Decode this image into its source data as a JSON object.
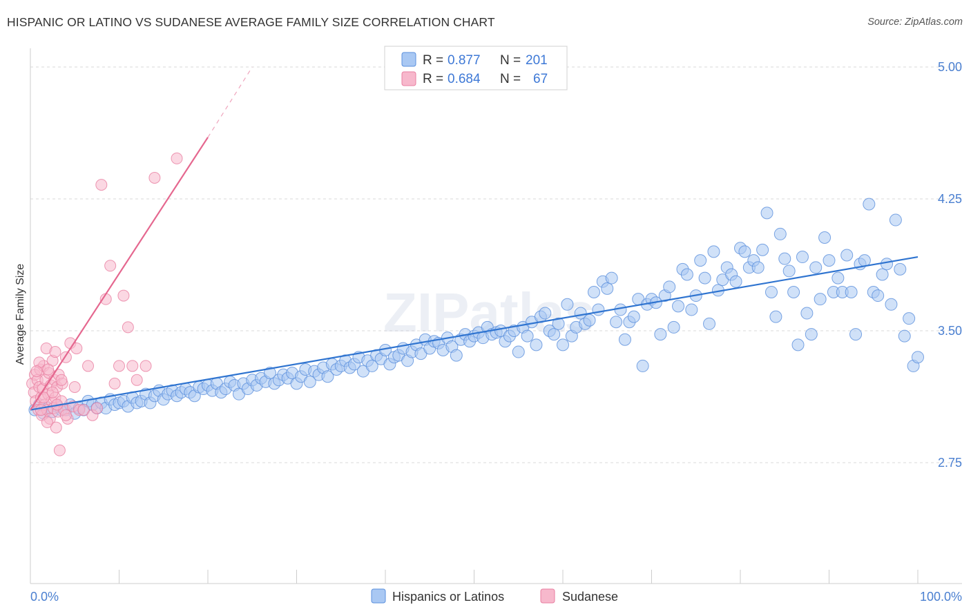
{
  "title": "HISPANIC OR LATINO VS SUDANESE AVERAGE FAMILY SIZE CORRELATION CHART",
  "source": "Source: ZipAtlas.com",
  "watermark": "ZIPatlas",
  "colors": {
    "blue_fill": "#a9c8f3",
    "blue_stroke": "#5a8fdc",
    "blue_line": "#2f74d0",
    "pink_fill": "#f7b8cc",
    "pink_stroke": "#e87ea0",
    "pink_line": "#e5678f",
    "grid": "#d9d9d9",
    "tick_label": "#4a7fd0"
  },
  "legend": {
    "rows": [
      {
        "r_label": "R =",
        "r_value": "0.877",
        "n_label": "N =",
        "n_value": "201"
      },
      {
        "r_label": "R =",
        "r_value": "0.684",
        "n_label": "N =",
        "n_value": "67"
      }
    ]
  },
  "chart_data": {
    "type": "scatter",
    "title": "HISPANIC OR LATINO VS SUDANESE AVERAGE FAMILY SIZE CORRELATION CHART",
    "xlabel": "",
    "ylabel": "Average Family Size",
    "x_tick_labels": [
      "0.0%",
      "100.0%"
    ],
    "y_tick_labels": [
      "5.00",
      "4.25",
      "3.50",
      "2.75"
    ],
    "y_ticks": [
      5.0,
      4.25,
      3.5,
      2.75
    ],
    "xlim": [
      0,
      100
    ],
    "ylim": [
      2.0,
      5.2
    ],
    "grid": "horizontal dashed",
    "legend_position": "bottom",
    "series": [
      {
        "name": "Hispanics or Latinos",
        "r": 0.877,
        "n": 201,
        "trend": {
          "x": [
            0,
            100
          ],
          "y": [
            3.05,
            3.92
          ]
        },
        "points": [
          [
            0.5,
            3.05
          ],
          [
            1,
            3.08
          ],
          [
            1.5,
            3.03
          ],
          [
            2,
            3.06
          ],
          [
            2.5,
            3.04
          ],
          [
            3,
            3.07
          ],
          [
            3.5,
            3.05
          ],
          [
            4,
            3.05
          ],
          [
            4.5,
            3.08
          ],
          [
            5,
            3.03
          ],
          [
            5.5,
            3.06
          ],
          [
            6,
            3.05
          ],
          [
            6.5,
            3.1
          ],
          [
            7,
            3.08
          ],
          [
            7.5,
            3.06
          ],
          [
            8,
            3.09
          ],
          [
            8.5,
            3.06
          ],
          [
            9,
            3.11
          ],
          [
            9.5,
            3.08
          ],
          [
            10,
            3.09
          ],
          [
            10.5,
            3.1
          ],
          [
            11,
            3.07
          ],
          [
            11.5,
            3.12
          ],
          [
            12,
            3.09
          ],
          [
            12.5,
            3.1
          ],
          [
            13,
            3.14
          ],
          [
            13.5,
            3.09
          ],
          [
            14,
            3.13
          ],
          [
            14.5,
            3.16
          ],
          [
            15,
            3.11
          ],
          [
            15.5,
            3.14
          ],
          [
            16,
            3.16
          ],
          [
            16.5,
            3.13
          ],
          [
            17,
            3.15
          ],
          [
            17.5,
            3.17
          ],
          [
            18,
            3.15
          ],
          [
            18.5,
            3.13
          ],
          [
            19,
            3.18
          ],
          [
            19.5,
            3.17
          ],
          [
            20,
            3.19
          ],
          [
            20.5,
            3.16
          ],
          [
            21,
            3.2
          ],
          [
            21.5,
            3.15
          ],
          [
            22,
            3.17
          ],
          [
            22.5,
            3.21
          ],
          [
            23,
            3.19
          ],
          [
            23.5,
            3.14
          ],
          [
            24,
            3.2
          ],
          [
            24.5,
            3.17
          ],
          [
            25,
            3.22
          ],
          [
            25.5,
            3.19
          ],
          [
            26,
            3.23
          ],
          [
            26.5,
            3.21
          ],
          [
            27,
            3.26
          ],
          [
            27.5,
            3.2
          ],
          [
            28,
            3.22
          ],
          [
            28.5,
            3.25
          ],
          [
            29,
            3.23
          ],
          [
            29.5,
            3.26
          ],
          [
            30,
            3.2
          ],
          [
            30.5,
            3.24
          ],
          [
            31,
            3.28
          ],
          [
            31.5,
            3.21
          ],
          [
            32,
            3.27
          ],
          [
            32.5,
            3.25
          ],
          [
            33,
            3.29
          ],
          [
            33.5,
            3.24
          ],
          [
            34,
            3.31
          ],
          [
            34.5,
            3.28
          ],
          [
            35,
            3.3
          ],
          [
            35.5,
            3.33
          ],
          [
            36,
            3.29
          ],
          [
            36.5,
            3.31
          ],
          [
            37,
            3.35
          ],
          [
            37.5,
            3.27
          ],
          [
            38,
            3.33
          ],
          [
            38.5,
            3.3
          ],
          [
            39,
            3.36
          ],
          [
            39.5,
            3.34
          ],
          [
            40,
            3.39
          ],
          [
            40.5,
            3.31
          ],
          [
            41,
            3.35
          ],
          [
            41.5,
            3.36
          ],
          [
            42,
            3.4
          ],
          [
            42.5,
            3.33
          ],
          [
            43,
            3.38
          ],
          [
            43.5,
            3.42
          ],
          [
            44,
            3.37
          ],
          [
            44.5,
            3.45
          ],
          [
            45,
            3.4
          ],
          [
            45.5,
            3.44
          ],
          [
            46,
            3.43
          ],
          [
            46.5,
            3.39
          ],
          [
            47,
            3.46
          ],
          [
            47.5,
            3.41
          ],
          [
            48,
            3.36
          ],
          [
            48.5,
            3.45
          ],
          [
            49,
            3.48
          ],
          [
            49.5,
            3.44
          ],
          [
            50,
            3.47
          ],
          [
            50.5,
            3.49
          ],
          [
            51,
            3.46
          ],
          [
            51.5,
            3.52
          ],
          [
            52,
            3.48
          ],
          [
            52.5,
            3.49
          ],
          [
            53,
            3.5
          ],
          [
            53.5,
            3.44
          ],
          [
            54,
            3.47
          ],
          [
            54.5,
            3.5
          ],
          [
            55,
            3.38
          ],
          [
            55.5,
            3.52
          ],
          [
            56,
            3.47
          ],
          [
            56.5,
            3.55
          ],
          [
            57,
            3.42
          ],
          [
            57.5,
            3.58
          ],
          [
            58,
            3.6
          ],
          [
            58.5,
            3.5
          ],
          [
            59,
            3.48
          ],
          [
            59.5,
            3.54
          ],
          [
            60,
            3.42
          ],
          [
            60.5,
            3.65
          ],
          [
            61,
            3.47
          ],
          [
            61.5,
            3.52
          ],
          [
            62,
            3.6
          ],
          [
            62.5,
            3.54
          ],
          [
            63,
            3.56
          ],
          [
            63.5,
            3.72
          ],
          [
            64,
            3.62
          ],
          [
            64.5,
            3.78
          ],
          [
            65,
            3.74
          ],
          [
            65.5,
            3.8
          ],
          [
            66,
            3.55
          ],
          [
            66.5,
            3.62
          ],
          [
            67,
            3.45
          ],
          [
            67.5,
            3.55
          ],
          [
            68,
            3.58
          ],
          [
            68.5,
            3.68
          ],
          [
            69,
            3.3
          ],
          [
            69.5,
            3.65
          ],
          [
            70,
            3.68
          ],
          [
            70.5,
            3.66
          ],
          [
            71,
            3.48
          ],
          [
            71.5,
            3.7
          ],
          [
            72,
            3.75
          ],
          [
            72.5,
            3.52
          ],
          [
            73,
            3.64
          ],
          [
            73.5,
            3.85
          ],
          [
            74,
            3.82
          ],
          [
            74.5,
            3.62
          ],
          [
            75,
            3.7
          ],
          [
            75.5,
            3.9
          ],
          [
            76,
            3.8
          ],
          [
            76.5,
            3.54
          ],
          [
            77,
            3.95
          ],
          [
            77.5,
            3.73
          ],
          [
            78,
            3.79
          ],
          [
            78.5,
            3.86
          ],
          [
            79,
            3.82
          ],
          [
            79.5,
            3.78
          ],
          [
            80,
            3.97
          ],
          [
            80.5,
            3.95
          ],
          [
            81,
            3.86
          ],
          [
            81.5,
            3.9
          ],
          [
            82,
            3.86
          ],
          [
            82.5,
            3.96
          ],
          [
            83,
            4.17
          ],
          [
            83.5,
            3.72
          ],
          [
            84,
            3.58
          ],
          [
            84.5,
            4.05
          ],
          [
            85,
            3.91
          ],
          [
            85.5,
            3.84
          ],
          [
            86,
            3.72
          ],
          [
            86.5,
            3.42
          ],
          [
            87,
            3.92
          ],
          [
            87.5,
            3.6
          ],
          [
            88,
            3.48
          ],
          [
            88.5,
            3.86
          ],
          [
            89,
            3.68
          ],
          [
            89.5,
            4.03
          ],
          [
            90,
            3.9
          ],
          [
            90.5,
            3.72
          ],
          [
            91,
            3.8
          ],
          [
            91.5,
            3.72
          ],
          [
            92,
            3.93
          ],
          [
            92.5,
            3.72
          ],
          [
            93,
            3.48
          ],
          [
            93.5,
            3.88
          ],
          [
            94,
            3.9
          ],
          [
            94.5,
            4.22
          ],
          [
            95,
            3.72
          ],
          [
            95.5,
            3.7
          ],
          [
            96,
            3.82
          ],
          [
            96.5,
            3.88
          ],
          [
            97,
            3.65
          ],
          [
            97.5,
            4.13
          ],
          [
            98,
            3.85
          ],
          [
            98.5,
            3.47
          ],
          [
            99,
            3.57
          ],
          [
            99.5,
            3.3
          ],
          [
            100,
            3.35
          ]
        ]
      },
      {
        "name": "Sudanese",
        "r": 0.684,
        "n": 67,
        "trend": {
          "x": [
            0,
            20
          ],
          "y": [
            3.05,
            4.6
          ],
          "dashed_to": {
            "x": 25,
            "y": 5.0
          }
        },
        "points": [
          [
            0.2,
            3.2
          ],
          [
            0.4,
            3.15
          ],
          [
            0.5,
            3.25
          ],
          [
            0.6,
            3.1
          ],
          [
            0.8,
            3.22
          ],
          [
            0.9,
            3.05
          ],
          [
            1,
            3.18
          ],
          [
            1.1,
            3.28
          ],
          [
            1.2,
            3.12
          ],
          [
            1.3,
            3.02
          ],
          [
            1.4,
            3.17
          ],
          [
            1.5,
            3.3
          ],
          [
            1.6,
            3.08
          ],
          [
            1.7,
            3.22
          ],
          [
            1.8,
            3.4
          ],
          [
            1.9,
            3.05
          ],
          [
            2,
            3.14
          ],
          [
            2.1,
            3.26
          ],
          [
            2.2,
            3.0
          ],
          [
            2.3,
            3.19
          ],
          [
            2.4,
            3.1
          ],
          [
            2.5,
            3.33
          ],
          [
            2.6,
            3.06
          ],
          [
            2.7,
            3.22
          ],
          [
            2.8,
            3.12
          ],
          [
            2.9,
            2.95
          ],
          [
            3,
            3.18
          ],
          [
            3.1,
            3.04
          ],
          [
            3.2,
            3.25
          ],
          [
            3.3,
            2.82
          ],
          [
            3.5,
            3.1
          ],
          [
            3.6,
            3.2
          ],
          [
            3.8,
            3.05
          ],
          [
            4,
            3.35
          ],
          [
            4.2,
            3.0
          ],
          [
            4.5,
            3.43
          ],
          [
            4.8,
            3.07
          ],
          [
            5,
            3.18
          ],
          [
            5.2,
            3.4
          ],
          [
            5.5,
            3.05
          ],
          [
            6,
            3.05
          ],
          [
            6.5,
            3.3
          ],
          [
            7,
            3.02
          ],
          [
            7.5,
            3.06
          ],
          [
            8,
            4.33
          ],
          [
            8.5,
            3.68
          ],
          [
            9,
            3.87
          ],
          [
            9.5,
            3.2
          ],
          [
            10,
            3.3
          ],
          [
            10.5,
            3.7
          ],
          [
            11,
            3.52
          ],
          [
            11.5,
            3.3
          ],
          [
            12,
            3.22
          ],
          [
            13,
            3.3
          ],
          [
            14,
            4.37
          ],
          [
            16.5,
            4.48
          ],
          [
            1.2,
            3.05
          ],
          [
            1.5,
            3.12
          ],
          [
            2,
            3.28
          ],
          [
            2.5,
            3.15
          ],
          [
            3,
            3.08
          ],
          [
            3.5,
            3.22
          ],
          [
            4,
            3.02
          ],
          [
            1,
            3.32
          ],
          [
            0.7,
            3.27
          ],
          [
            2.8,
            3.38
          ],
          [
            1.9,
            2.98
          ]
        ]
      }
    ]
  },
  "bottom_legend": [
    {
      "label": "Hispanics or Latinos"
    },
    {
      "label": "Sudanese"
    }
  ]
}
